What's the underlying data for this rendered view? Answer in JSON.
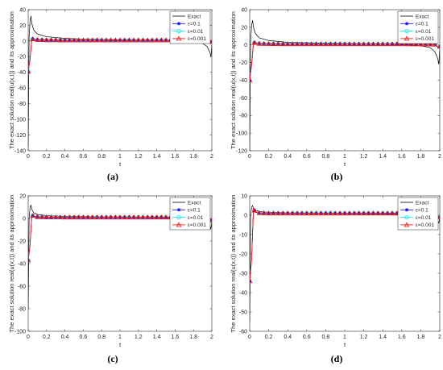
{
  "chart_data": [
    {
      "type": "line",
      "caption": "(a)",
      "xlabel": "t",
      "ylabel": "The exact solution real(u(x,t)) and its approximation",
      "xlim": [
        0,
        2
      ],
      "ylim": [
        -140,
        40
      ],
      "xticks": [
        "0",
        "0.2",
        "0.4",
        "0.6",
        "0.8",
        "1",
        "1.2",
        "1.4",
        "1.6",
        "1.8",
        "2"
      ],
      "yticks": [
        "-140",
        "-120",
        "-100",
        "-80",
        "-60",
        "-40",
        "-20",
        "0",
        "20",
        "40"
      ],
      "legend": [
        "Exact",
        "ε=0.1",
        "ε=0.01",
        "ε=0.001"
      ],
      "series": [
        {
          "name": "Exact",
          "x": [
            0,
            0.005,
            0.01,
            0.02,
            0.03,
            0.04,
            0.06,
            0.1,
            0.2,
            0.4,
            0.6,
            0.8,
            1,
            1.2,
            1.4,
            1.6,
            1.8,
            1.9,
            1.95,
            1.98,
            1.99,
            2
          ],
          "y": [
            -135,
            -60,
            5,
            25,
            32,
            22,
            14,
            9,
            5.5,
            3.5,
            2.5,
            2,
            1.5,
            1.2,
            1,
            0.5,
            -1,
            -3,
            -7,
            -15,
            -20,
            -5
          ]
        },
        {
          "name": "ε=0.1",
          "x": [
            0,
            0.02,
            0.04,
            0.06,
            0.1,
            0.2,
            0.4,
            0.6,
            0.8,
            1,
            1.2,
            1.4,
            1.6,
            1.8,
            1.96,
            1.98,
            2
          ],
          "y": [
            -39,
            -24,
            3,
            2,
            1.5,
            1.2,
            1,
            1,
            1,
            1,
            1,
            1,
            1,
            0.8,
            0.5,
            -2,
            -1
          ]
        },
        {
          "name": "ε=0.01",
          "x": [
            0,
            0.02,
            0.04,
            0.06,
            0.1,
            0.2,
            0.4,
            0.6,
            0.8,
            1,
            1.2,
            1.4,
            1.6,
            1.8,
            1.96,
            1.98,
            2
          ],
          "y": [
            -39,
            -24,
            3,
            2,
            1.5,
            1.2,
            1,
            1,
            1,
            1,
            1,
            1,
            1,
            0.8,
            0.5,
            -2,
            -1
          ]
        },
        {
          "name": "ε=0.001",
          "x": [
            0,
            0.02,
            0.04,
            0.06,
            0.1,
            0.2,
            0.4,
            0.6,
            0.8,
            1,
            1.2,
            1.4,
            1.6,
            1.8,
            1.96,
            1.98,
            2
          ],
          "y": [
            -39,
            -24,
            3,
            2,
            1.5,
            1.2,
            1,
            1,
            1,
            1,
            1,
            1,
            1,
            0.8,
            0.5,
            -2,
            -1
          ]
        }
      ]
    },
    {
      "type": "line",
      "caption": "(b)",
      "xlabel": "t",
      "ylabel": "The exact solution real(u(x,t)) and its approximation",
      "xlim": [
        0,
        2
      ],
      "ylim": [
        -120,
        40
      ],
      "xticks": [
        "0",
        "0.2",
        "0.4",
        "0.6",
        "0.8",
        "1",
        "1.2",
        "1.4",
        "1.6",
        "1.8",
        "2"
      ],
      "yticks": [
        "-120",
        "-100",
        "-80",
        "-60",
        "-40",
        "-20",
        "0",
        "20",
        "40"
      ],
      "legend": [
        "Exact",
        "ε=0.1",
        "ε=0.01",
        "ε=0.001"
      ],
      "series": [
        {
          "name": "Exact",
          "x": [
            0,
            0.005,
            0.01,
            0.02,
            0.03,
            0.04,
            0.06,
            0.1,
            0.2,
            0.4,
            0.6,
            0.8,
            1,
            1.2,
            1.4,
            1.6,
            1.8,
            1.9,
            1.95,
            1.98,
            1.99,
            2
          ],
          "y": [
            -118,
            -55,
            5,
            22,
            28,
            20,
            13,
            8,
            5,
            3,
            2.5,
            2,
            1.5,
            1.2,
            1,
            0.5,
            -1,
            -3,
            -8,
            -16,
            -22,
            -5
          ]
        },
        {
          "name": "ε=0.1",
          "x": [
            0,
            0.02,
            0.04,
            0.06,
            0.1,
            0.2,
            0.4,
            0.6,
            0.8,
            1,
            1.2,
            1.4,
            1.6,
            1.8,
            1.96,
            1.98,
            2
          ],
          "y": [
            -40,
            -23,
            3,
            2,
            1.5,
            1.2,
            1,
            1,
            1,
            1,
            1,
            1,
            1,
            0.8,
            0.5,
            -3,
            -2
          ]
        },
        {
          "name": "ε=0.01",
          "x": [
            0,
            0.02,
            0.04,
            0.06,
            0.1,
            0.2,
            0.4,
            0.6,
            0.8,
            1,
            1.2,
            1.4,
            1.6,
            1.8,
            1.96,
            1.98,
            2
          ],
          "y": [
            -40,
            -23,
            3,
            2,
            1.5,
            1.2,
            1,
            1,
            1,
            1,
            1,
            1,
            1,
            0.8,
            0.5,
            -3,
            -2
          ]
        },
        {
          "name": "ε=0.001",
          "x": [
            0,
            0.02,
            0.04,
            0.06,
            0.1,
            0.2,
            0.4,
            0.6,
            0.8,
            1,
            1.2,
            1.4,
            1.6,
            1.8,
            1.96,
            1.98,
            2
          ],
          "y": [
            -40,
            -23,
            3,
            2,
            1.5,
            1.2,
            1,
            1,
            1,
            1,
            1,
            1,
            1,
            0.8,
            0.5,
            -3,
            -2
          ]
        }
      ]
    },
    {
      "type": "line",
      "caption": "(c)",
      "xlabel": "t",
      "ylabel": "The exact solution real(u(x,t)) and its approximation",
      "xlim": [
        0,
        2
      ],
      "ylim": [
        -100,
        20
      ],
      "xticks": [
        "0",
        "0.2",
        "0.4",
        "0.6",
        "0.8",
        "1",
        "1.2",
        "1.4",
        "1.6",
        "1.8",
        "2"
      ],
      "yticks": [
        "-100",
        "-80",
        "-60",
        "-40",
        "-20",
        "0",
        "20"
      ],
      "legend": [
        "Exact",
        "ε=0.1",
        "ε=0.01",
        "ε=0.001"
      ],
      "series": [
        {
          "name": "Exact",
          "x": [
            0,
            0.005,
            0.01,
            0.02,
            0.03,
            0.04,
            0.06,
            0.1,
            0.2,
            0.4,
            0.6,
            0.8,
            1,
            1.2,
            1.4,
            1.6,
            1.8,
            1.9,
            1.95,
            1.98,
            1.99,
            2
          ],
          "y": [
            -80,
            -40,
            0,
            9,
            12,
            8,
            5,
            3.5,
            2.5,
            1.8,
            1.5,
            1.3,
            1.2,
            1,
            0.8,
            0.5,
            -0.5,
            -2,
            -4,
            -7,
            -9,
            -3
          ]
        },
        {
          "name": "ε=0.1",
          "x": [
            0,
            0.02,
            0.04,
            0.06,
            0.1,
            0.2,
            0.4,
            0.6,
            0.8,
            1,
            1.2,
            1.4,
            1.6,
            1.8,
            1.96,
            1.98,
            2
          ],
          "y": [
            -37,
            -24,
            3,
            1.8,
            1.3,
            1.1,
            1,
            1,
            1,
            1,
            1,
            1,
            1,
            0.8,
            0.5,
            -2,
            -1.5
          ]
        },
        {
          "name": "ε=0.01",
          "x": [
            0,
            0.02,
            0.04,
            0.06,
            0.1,
            0.2,
            0.4,
            0.6,
            0.8,
            1,
            1.2,
            1.4,
            1.6,
            1.8,
            1.96,
            1.98,
            2
          ],
          "y": [
            -37,
            -24,
            3,
            1.8,
            1.3,
            1.1,
            1,
            1,
            1,
            1,
            1,
            1,
            1,
            0.8,
            0.5,
            -2,
            -1.5
          ]
        },
        {
          "name": "ε=0.001",
          "x": [
            0,
            0.02,
            0.04,
            0.06,
            0.1,
            0.2,
            0.4,
            0.6,
            0.8,
            1,
            1.2,
            1.4,
            1.6,
            1.8,
            1.96,
            1.98,
            2
          ],
          "y": [
            -37,
            -24,
            3,
            1.8,
            1.3,
            1.1,
            1,
            1,
            1,
            1,
            1,
            1,
            1,
            0.8,
            0.5,
            -2,
            -1.5
          ]
        }
      ]
    },
    {
      "type": "line",
      "caption": "(d)",
      "xlabel": "t",
      "ylabel": "The exact solution real(u(x,t)) and its approximation",
      "xlim": [
        0,
        2
      ],
      "ylim": [
        -60,
        10
      ],
      "xticks": [
        "0",
        "0.2",
        "0.4",
        "0.6",
        "0.8",
        "1",
        "1.2",
        "1.4",
        "1.6",
        "1.8",
        "2"
      ],
      "yticks": [
        "-60",
        "-50",
        "-40",
        "-30",
        "-20",
        "-10",
        "0",
        "10"
      ],
      "legend": [
        "Exact",
        "ε=0.1",
        "ε=0.01",
        "ε=0.001"
      ],
      "series": [
        {
          "name": "Exact",
          "x": [
            0,
            0.005,
            0.01,
            0.02,
            0.03,
            0.04,
            0.06,
            0.1,
            0.2,
            0.4,
            0.6,
            0.8,
            1,
            1.2,
            1.4,
            1.6,
            1.8,
            1.9,
            1.95,
            1.98,
            1.99,
            2
          ],
          "y": [
            -55,
            -25,
            0,
            4,
            5,
            3.5,
            2.5,
            2,
            1.5,
            1.2,
            1.1,
            1,
            1,
            0.9,
            0.8,
            0.6,
            0.2,
            -0.5,
            -1.5,
            -3,
            -4,
            -1.5
          ]
        },
        {
          "name": "ε=0.1",
          "x": [
            0,
            0.02,
            0.04,
            0.06,
            0.1,
            0.2,
            0.4,
            0.6,
            0.8,
            1,
            1.2,
            1.4,
            1.6,
            1.8,
            1.96,
            1.98,
            2
          ],
          "y": [
            -34,
            -23,
            3.5,
            1.5,
            1.2,
            1,
            1,
            1,
            1,
            1,
            1,
            1,
            1,
            0.8,
            0.5,
            -1.5,
            -1
          ]
        },
        {
          "name": "ε=0.01",
          "x": [
            0,
            0.02,
            0.04,
            0.06,
            0.1,
            0.2,
            0.4,
            0.6,
            0.8,
            1,
            1.2,
            1.4,
            1.6,
            1.8,
            1.96,
            1.98,
            2
          ],
          "y": [
            -34,
            -23,
            3.5,
            1.5,
            1.2,
            1,
            1,
            1,
            1,
            1,
            1,
            1,
            1,
            0.8,
            0.5,
            -1.5,
            -1
          ]
        },
        {
          "name": "ε=0.001",
          "x": [
            0,
            0.02,
            0.04,
            0.06,
            0.1,
            0.2,
            0.4,
            0.6,
            0.8,
            1,
            1.2,
            1.4,
            1.6,
            1.8,
            1.96,
            1.98,
            2
          ],
          "y": [
            -34,
            -23,
            3.5,
            1.5,
            1.2,
            1,
            1,
            1,
            1,
            1,
            1,
            1,
            1,
            0.8,
            0.5,
            -1.5,
            -1
          ]
        }
      ]
    }
  ],
  "colors": {
    "Exact": "#000000",
    "ε=0.1": "#0000ff",
    "ε=0.01": "#00e5ee",
    "ε=0.001": "#ff0000"
  },
  "markers": {
    "Exact": "none",
    "ε=0.1": "star",
    "ε=0.01": "circle",
    "ε=0.001": "triangle"
  }
}
